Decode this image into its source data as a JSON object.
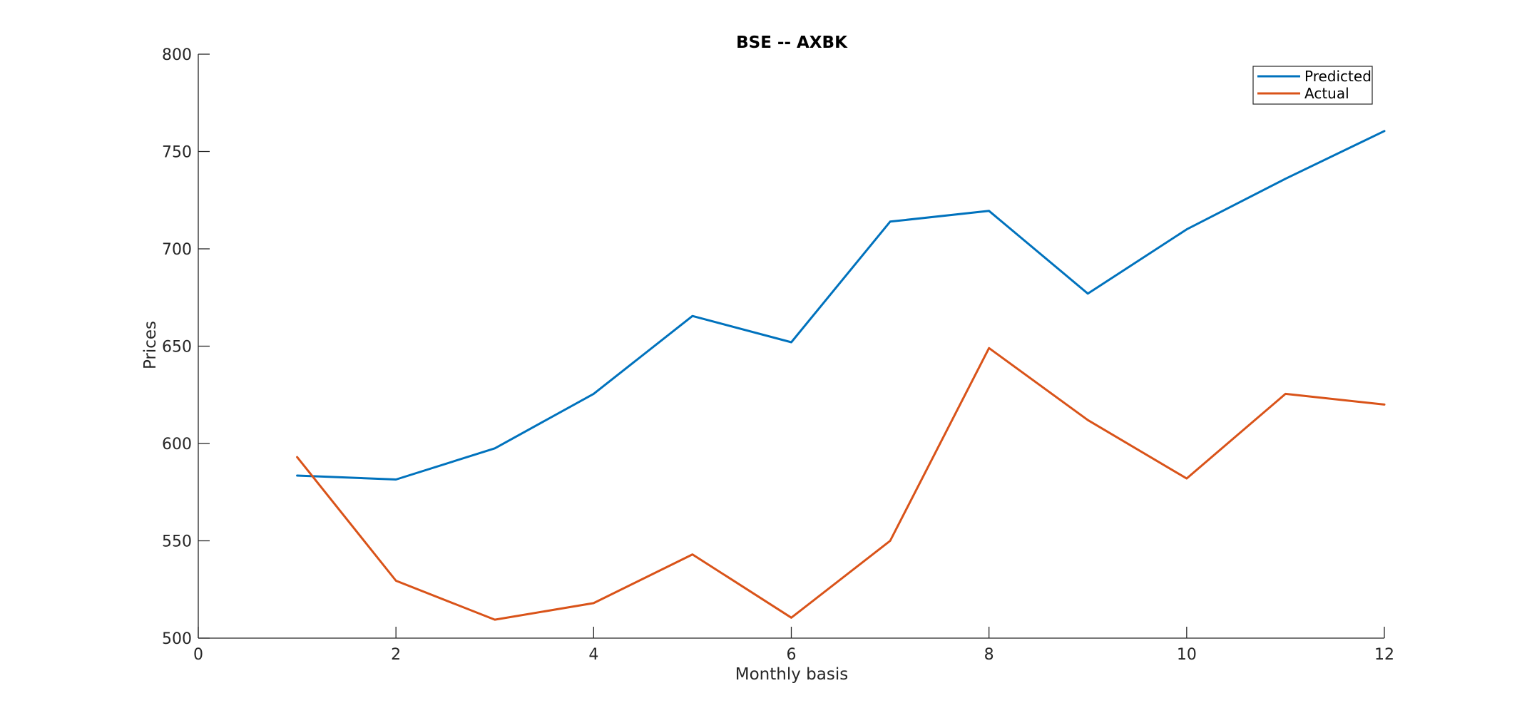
{
  "chart_data": {
    "type": "line",
    "title": "BSE -- AXBK",
    "xlabel": "Monthly basis",
    "ylabel": "Prices",
    "xlim": [
      0,
      12
    ],
    "ylim": [
      500,
      800
    ],
    "xticks": [
      0,
      2,
      4,
      6,
      8,
      10,
      12
    ],
    "yticks": [
      500,
      550,
      600,
      650,
      700,
      750,
      800
    ],
    "grid": false,
    "legend_position": "top-right",
    "x": [
      1,
      2,
      3,
      4,
      5,
      6,
      7,
      8,
      9,
      10,
      11,
      12
    ],
    "series": [
      {
        "name": "Predicted",
        "color": "#0072BD",
        "values": [
          583.5,
          581.5,
          597.5,
          625.5,
          665.5,
          652,
          714,
          719.5,
          677,
          710,
          736,
          760.5
        ]
      },
      {
        "name": "Actual",
        "color": "#D95319",
        "values": [
          593,
          529.5,
          509.5,
          518,
          543,
          510.5,
          550,
          649,
          612,
          582,
          625.5,
          620
        ]
      }
    ]
  }
}
